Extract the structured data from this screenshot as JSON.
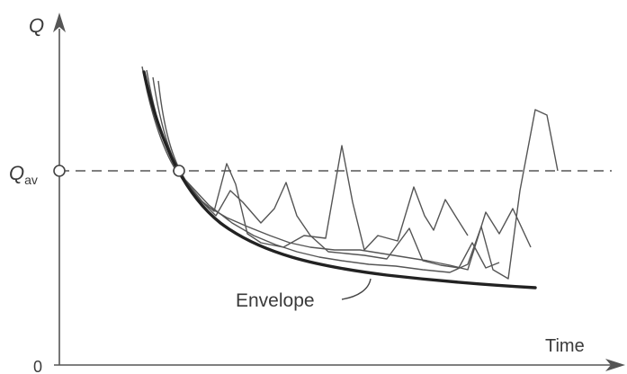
{
  "diagram": {
    "y_axis_label": "Q",
    "y_level_label": "Q",
    "y_level_subscript": "av",
    "origin_label": "0",
    "x_axis_label": "Time",
    "envelope_label": "Envelope"
  },
  "colors": {
    "ink": "#3a3a3a",
    "thin_lines": "#555555",
    "envelope": "#222222",
    "dashed_line": "#555555",
    "background": "#ffffff"
  }
}
